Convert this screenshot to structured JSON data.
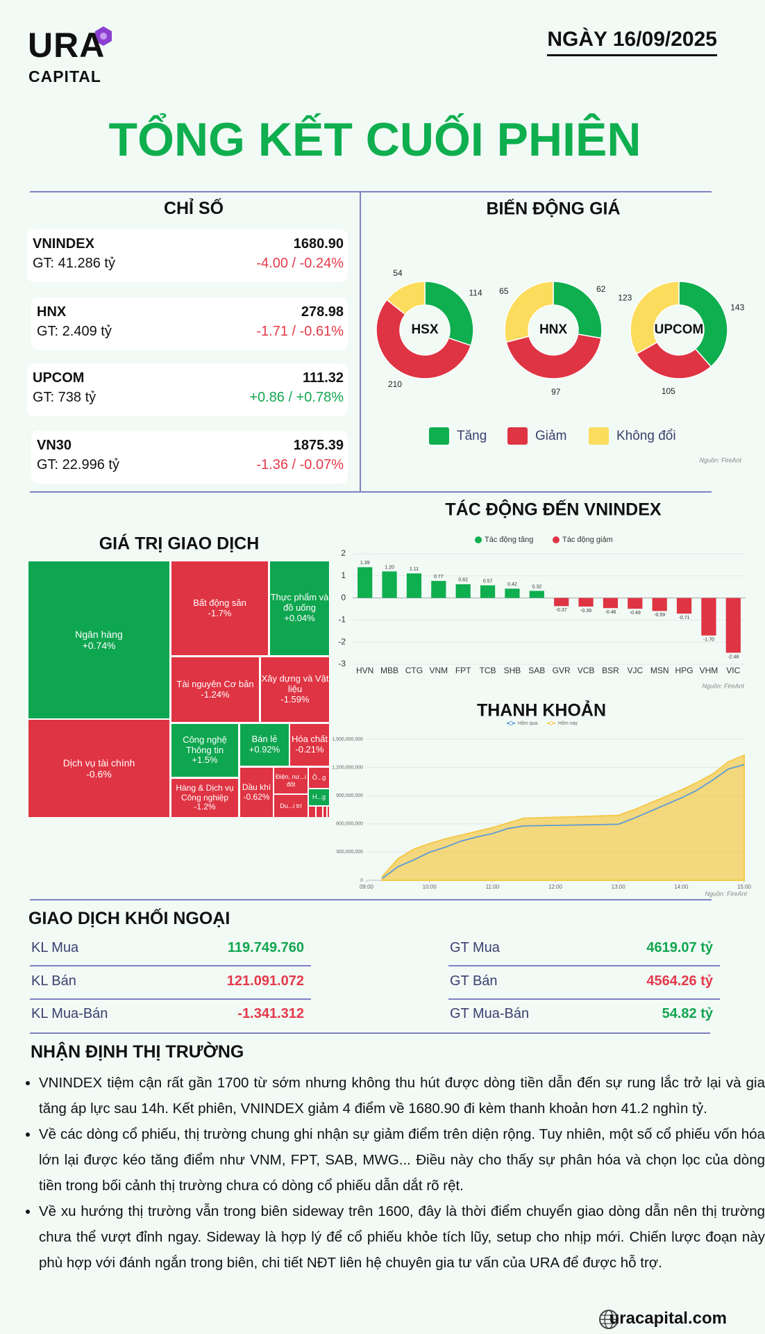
{
  "header": {
    "logo_main": "URA",
    "logo_sub": "CAPITAL",
    "date": "NGÀY 16/09/2025",
    "title": "TỔNG KẾT CUỐI PHIÊN"
  },
  "indices": {
    "title": "CHỈ SỐ",
    "items": [
      {
        "name": "VNINDEX",
        "value": "1680.90",
        "gt": "GT: 41.286 tỷ",
        "change": "-4.00 / -0.24%",
        "color": "#e5394a"
      },
      {
        "name": "HNX",
        "value": "278.98",
        "gt": "GT: 2.409 tỷ",
        "change": "-1.71 / -0.61%",
        "color": "#e5394a"
      },
      {
        "name": "UPCOM",
        "value": "111.32",
        "gt": "GT: 738 tỷ",
        "change": "+0.86 / +0.78%",
        "color": "#12a550"
      },
      {
        "name": "VN30",
        "value": "1875.39",
        "gt": "GT: 22.996 tỷ",
        "change": "-1.36 / -0.07%",
        "color": "#e5394a"
      }
    ]
  },
  "foreign": {
    "title": "GIAO DỊCH KHỐI NGOẠI",
    "rows": [
      [
        {
          "label": "KL Mua",
          "value": "119.749.760",
          "color": "#12a550"
        },
        {
          "label": "GT Mua",
          "value": "4619.07 tỷ",
          "color": "#12a550"
        }
      ],
      [
        {
          "label": "KL Bán",
          "value": "121.091.072",
          "color": "#e5394a"
        },
        {
          "label": "GT Bán",
          "value": "4564.26 tỷ",
          "color": "#e5394a"
        }
      ],
      [
        {
          "label": "KL Mua-Bán",
          "value": "-1.341.312",
          "color": "#e5394a"
        },
        {
          "label": "GT Mua-Bán",
          "value": "54.82 tỷ",
          "color": "#12a550"
        }
      ]
    ]
  },
  "commentary": {
    "title": "NHẬN ĐỊNH THỊ TRƯỜNG",
    "bullets": [
      "VNINDEX tiệm cận rất gần 1700 từ sớm nhưng không thu hút được dòng tiền dẫn đến sự rung lắc trở lại và gia tăng áp lực sau 14h. Kết phiên, VNINDEX giảm 4 điểm về 1680.90 đi kèm thanh khoản hơn 41.2 nghìn tỷ.",
      "Về các dòng cổ phiếu, thị trường chung ghi nhận sự giảm điểm trên diện rộng. Tuy nhiên, một số cổ phiếu vốn hóa lớn lại được kéo tăng điểm như VNM, FPT, SAB, MWG... Điều này cho thấy sự phân hóa và chọn lọc của dòng tiền trong bối cảnh thị trường chưa có dòng cổ phiếu dẫn dắt rõ rệt.",
      "Về xu hướng thị trường vẫn trong biên sideway trên 1600, đây là thời điểm chuyển giao dòng dẫn nên thị trường chưa thể vượt đỉnh ngay. Sideway là hợp lý để cổ phiếu khỏe tích lũy, setup cho nhịp mới. Chiến lược đoạn này phù hợp với đánh ngắn trong biên, chi tiết NĐT liên hệ chuyên gia tư vấn của URA để được hỗ trợ."
    ]
  },
  "footer": {
    "website": "uracapital.com"
  },
  "chart_data": [
    {
      "type": "donut",
      "title": "BIẾN ĐỘNG GIÁ",
      "categories": [
        "Tăng",
        "Giảm",
        "Không đổi"
      ],
      "colors": [
        "#0fae4f",
        "#df3443",
        "#fcdc5c"
      ],
      "series": [
        {
          "name": "HSX",
          "values": [
            114,
            210,
            54
          ]
        },
        {
          "name": "HNX",
          "values": [
            62,
            97,
            65
          ]
        },
        {
          "name": "UPCOM",
          "values": [
            143,
            105,
            123
          ]
        }
      ],
      "source": "Nguồn: FireAnt"
    },
    {
      "type": "treemap",
      "title": "GIÁ TRỊ GIAO DỊCH",
      "categories": [
        "Ngân hàng",
        "Dịch vụ tài chính",
        "Bất động sản",
        "Thực phẩm và đồ uống",
        "Tài nguyên Cơ bản",
        "Xây dựng và Vật liệu",
        "Công nghệ Thông tin",
        "Bán lẻ",
        "Hóa chất",
        "Hàng & Dịch vụ Công nghiệp",
        "Dầu khí",
        "Điện, nư...i đốt",
        "Ô...g",
        "H...g",
        "Du...i trí"
      ],
      "values": [
        0.74,
        -0.6,
        -1.7,
        0.04,
        -1.24,
        -1.59,
        1.5,
        0.92,
        -0.21,
        -1.2,
        -0.62,
        null,
        null,
        null,
        null
      ],
      "value_labels": [
        "+0.74%",
        "-0.6%",
        "-1.7%",
        "+0.04%",
        "-1.24%",
        "-1.59%",
        "+1.5%",
        "+0.92%",
        "-0.21%",
        "-1.2%",
        "-0.62%",
        null,
        null,
        null,
        null
      ],
      "colors": [
        "#0fa650",
        "#df3443",
        "#df3443",
        "#0fa650",
        "#df3443",
        "#df3443",
        "#0fa650",
        "#0fa650",
        "#df3443",
        "#df3443",
        "#df3443",
        "#df3443",
        "#df3443",
        "#0fa650",
        "#df3443"
      ]
    },
    {
      "type": "bar",
      "title": "TÁC ĐỘNG ĐẾN VNINDEX",
      "categories": [
        "HVN",
        "MBB",
        "CTG",
        "VNM",
        "FPT",
        "TCB",
        "SHB",
        "SAB",
        "GVR",
        "VCB",
        "BSR",
        "VJC",
        "MSN",
        "HPG",
        "VHM",
        "VIC"
      ],
      "series": [
        {
          "name": "Tác động tăng",
          "color": "#0fae4f",
          "values": [
            1.39,
            1.2,
            1.11,
            0.77,
            0.62,
            0.57,
            0.42,
            0.32,
            null,
            null,
            null,
            null,
            null,
            null,
            null,
            null
          ],
          "value_labels": [
            "1.39",
            "1.20",
            "1.11",
            "0.77",
            "0.62",
            "0.57",
            "0.42",
            "0.32",
            null,
            null,
            null,
            null,
            null,
            null,
            null,
            null
          ]
        },
        {
          "name": "Tác động giảm",
          "color": "#df3443",
          "values": [
            null,
            null,
            null,
            null,
            null,
            null,
            null,
            null,
            -0.37,
            -0.39,
            -0.46,
            -0.49,
            -0.59,
            -0.71,
            -1.7,
            -2.48
          ],
          "value_labels": [
            null,
            null,
            null,
            null,
            null,
            null,
            null,
            null,
            "-0.37",
            "-0.39",
            "-0.46",
            "-0.49",
            "-0.59",
            "-0.71",
            "-1.70",
            "-2.48"
          ]
        }
      ],
      "ylim": [
        -3,
        2
      ],
      "yticks": [
        -3,
        -2,
        -1,
        0,
        1,
        2
      ],
      "grid": true,
      "source": "Nguồn: FireAnt"
    },
    {
      "type": "line",
      "title": "THANH KHOẢN",
      "x": [
        "09:15",
        "09:30",
        "09:45",
        "10:00",
        "10:15",
        "10:30",
        "10:45",
        "11:00",
        "11:15",
        "11:30",
        "13:00",
        "13:15",
        "13:30",
        "13:45",
        "14:00",
        "14:15",
        "14:30",
        "14:45",
        "15:00"
      ],
      "series": [
        {
          "name": "Hôm qua",
          "color": "#5b9bd5",
          "fill": false,
          "values": [
            20000000,
            145000000,
            217000000,
            298000000,
            352000000,
            416000000,
            461000000,
            497000000,
            551000000,
            578000000,
            596000000,
            660000000,
            732000000,
            804000000,
            876000000,
            958000000,
            1066000000,
            1184000000,
            1230000000
          ]
        },
        {
          "name": "Hôm nay",
          "color": "#f5c94a",
          "fill": true,
          "values": [
            40000000,
            230000000,
            330000000,
            390000000,
            440000000,
            480000000,
            520000000,
            560000000,
            610000000,
            660000000,
            690000000,
            750000000,
            820000000,
            890000000,
            960000000,
            1040000000,
            1130000000,
            1260000000,
            1330000000
          ]
        }
      ],
      "xlim": [
        "09:00",
        "15:00"
      ],
      "xticks": [
        "09:00",
        "10:00",
        "11:00",
        "12:00",
        "13:00",
        "14:00",
        "15:00"
      ],
      "ylim": [
        0,
        1500000000
      ],
      "yticks": [
        0,
        {
          "value": 300000000,
          "label": "300,000,000"
        },
        {
          "value": 600000000,
          "label": "600,000,000"
        },
        {
          "value": 900000000,
          "label": "900,000,000"
        },
        {
          "value": 1200000000,
          "label": "1,200,000,000"
        },
        {
          "value": 1500000000,
          "label": "1,500,000,000"
        }
      ],
      "grid": true,
      "source": "Nguồn: FireAnt"
    }
  ]
}
